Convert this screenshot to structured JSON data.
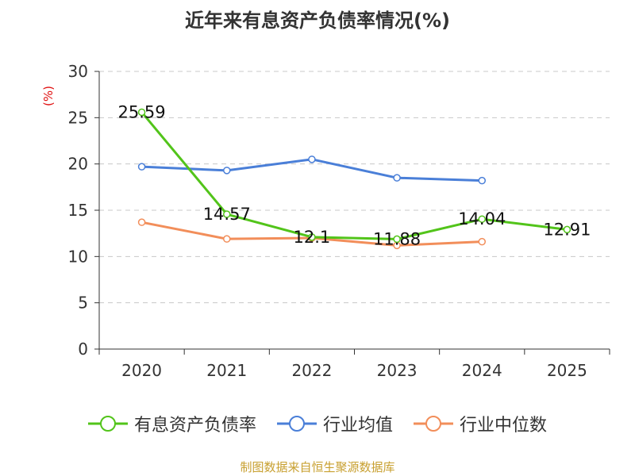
{
  "chart_data": {
    "type": "line",
    "title": "近年来有息资产负债率情况(%)",
    "ylabel": "(%)",
    "xlabel": "",
    "categories": [
      "2020",
      "2021",
      "2022",
      "2023",
      "2024",
      "2025"
    ],
    "ylim": [
      0,
      30
    ],
    "yticks": [
      0,
      5,
      10,
      15,
      20,
      25,
      30
    ],
    "grid": true,
    "legend_position": "bottom",
    "series": [
      {
        "name": "有息资产负债率",
        "color": "#52c41a",
        "values": [
          25.59,
          14.57,
          12.1,
          11.88,
          14.04,
          12.91
        ],
        "labels": [
          "25.59",
          "14.57",
          "12.1",
          "11.88",
          "14.04",
          "12.91"
        ]
      },
      {
        "name": "行业均值",
        "color": "#4a7fd8",
        "values": [
          19.7,
          19.3,
          20.5,
          18.5,
          18.2,
          null
        ]
      },
      {
        "name": "行业中位数",
        "color": "#f28e5a",
        "values": [
          13.7,
          11.9,
          12.0,
          11.2,
          11.6,
          null
        ]
      }
    ]
  },
  "footer": "制图数据来自恒生聚源数据库"
}
